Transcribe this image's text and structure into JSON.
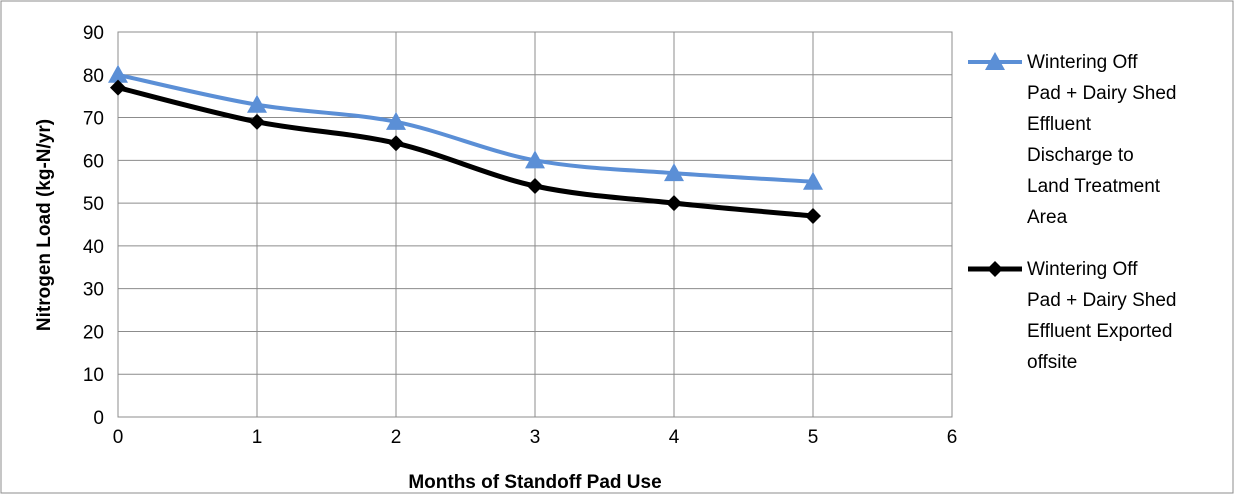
{
  "chart_data": {
    "type": "line",
    "title": "",
    "xlabel": "Months of Standoff Pad Use",
    "ylabel": "Nitrogen Load (kg-N/yr)",
    "xlim": [
      0,
      6
    ],
    "ylim": [
      0,
      90
    ],
    "x_ticks": [
      0,
      1,
      2,
      3,
      4,
      5,
      6
    ],
    "y_ticks": [
      0,
      10,
      20,
      30,
      40,
      50,
      60,
      70,
      80,
      90
    ],
    "grid": true,
    "legend_position": "right",
    "series": [
      {
        "name": "Wintering Off Pad + Dairy Shed Effluent Discharge to Land Treatment Area",
        "legend_lines": [
          "Wintering Off",
          "Pad + Dairy Shed",
          "Effluent",
          "Discharge to",
          "Land Treatment",
          "Area"
        ],
        "color": "#5B8FD6",
        "marker": "triangle",
        "x": [
          0,
          1,
          2,
          3,
          4,
          5
        ],
        "values": [
          80,
          73,
          69,
          60,
          57,
          55
        ]
      },
      {
        "name": "Wintering Off Pad + Dairy Shed Effluent Exported offsite",
        "legend_lines": [
          "Wintering Off",
          "Pad + Dairy Shed",
          "Effluent Exported",
          "offsite"
        ],
        "color": "#000000",
        "marker": "diamond",
        "x": [
          0,
          1,
          2,
          3,
          4,
          5
        ],
        "values": [
          77,
          69,
          64,
          54,
          50,
          47
        ]
      }
    ]
  }
}
